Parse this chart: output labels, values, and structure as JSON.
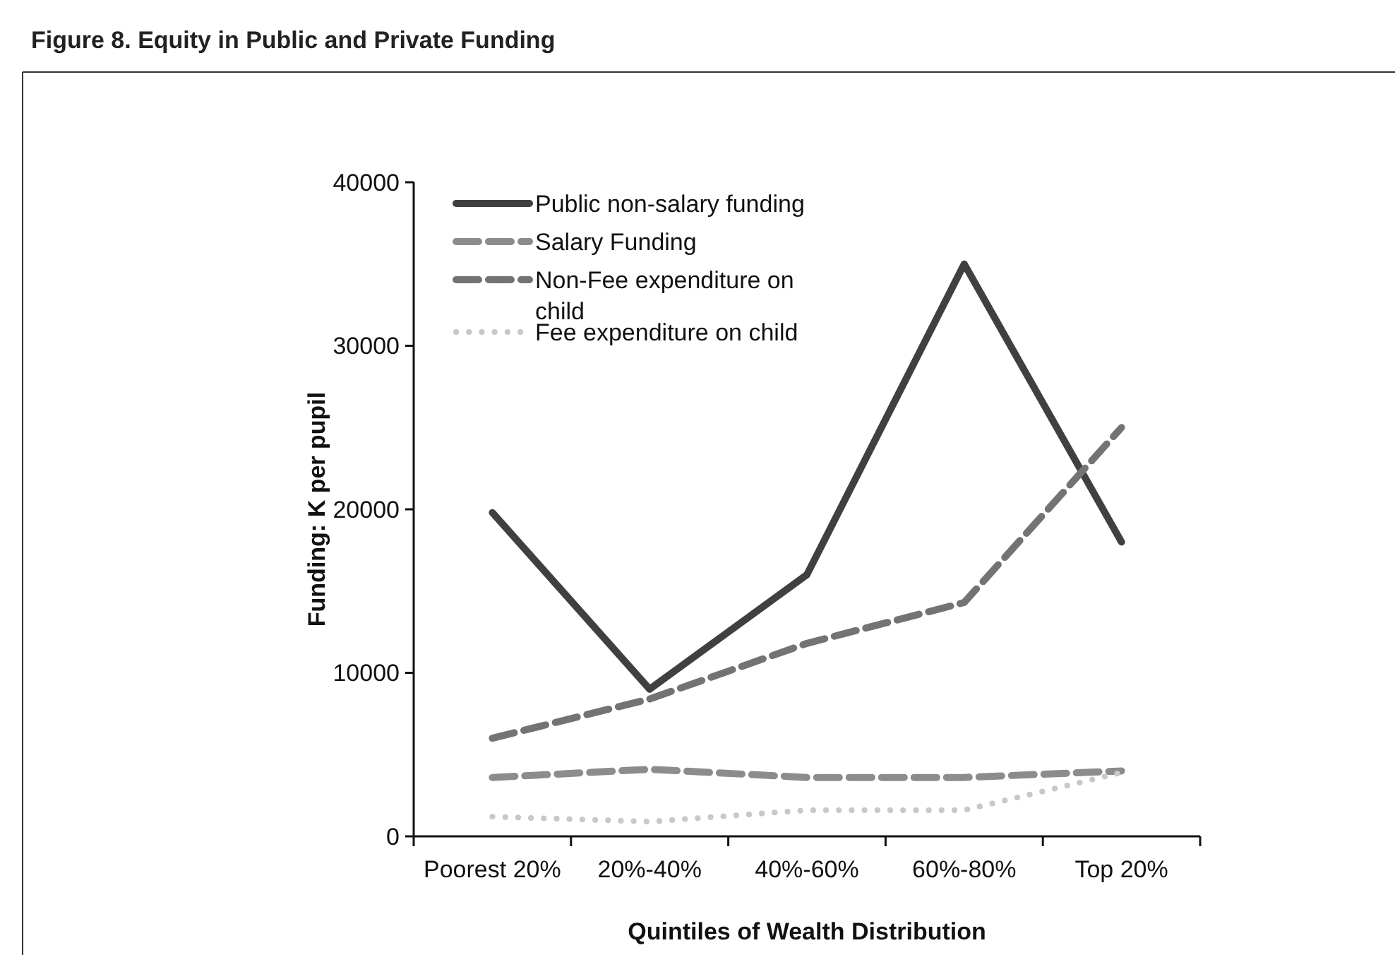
{
  "chart_data": {
    "type": "line",
    "title": "Figure 8.  Equity in Public and Private Funding",
    "xlabel": "Quintiles of Wealth Distribution",
    "ylabel": "Funding: K per pupil",
    "categories": [
      "Poorest 20%",
      "20%-40%",
      "40%-60%",
      "60%-80%",
      "Top 20%"
    ],
    "ylim": [
      0,
      40000
    ],
    "yticks": [
      0,
      10000,
      20000,
      30000,
      40000
    ],
    "grid": false,
    "legend": "top left",
    "series": [
      {
        "name": "Public non-salary funding",
        "color": "#404040",
        "line_style": "solid",
        "values": [
          19800,
          9000,
          16000,
          35000,
          18000
        ]
      },
      {
        "name": "Salary Funding",
        "color": "#8c8c8c",
        "line_style": "dashed",
        "values": [
          3600,
          4100,
          3600,
          3600,
          4000
        ]
      },
      {
        "name": "Non-Fee expenditure on child",
        "color": "#737373",
        "line_style": "dashed",
        "values": [
          6000,
          8400,
          11800,
          14300,
          25000
        ]
      },
      {
        "name": "Fee expenditure on child",
        "color": "#c8c8c8",
        "line_style": "dotted",
        "values": [
          1200,
          900,
          1600,
          1600,
          3900
        ]
      }
    ]
  }
}
